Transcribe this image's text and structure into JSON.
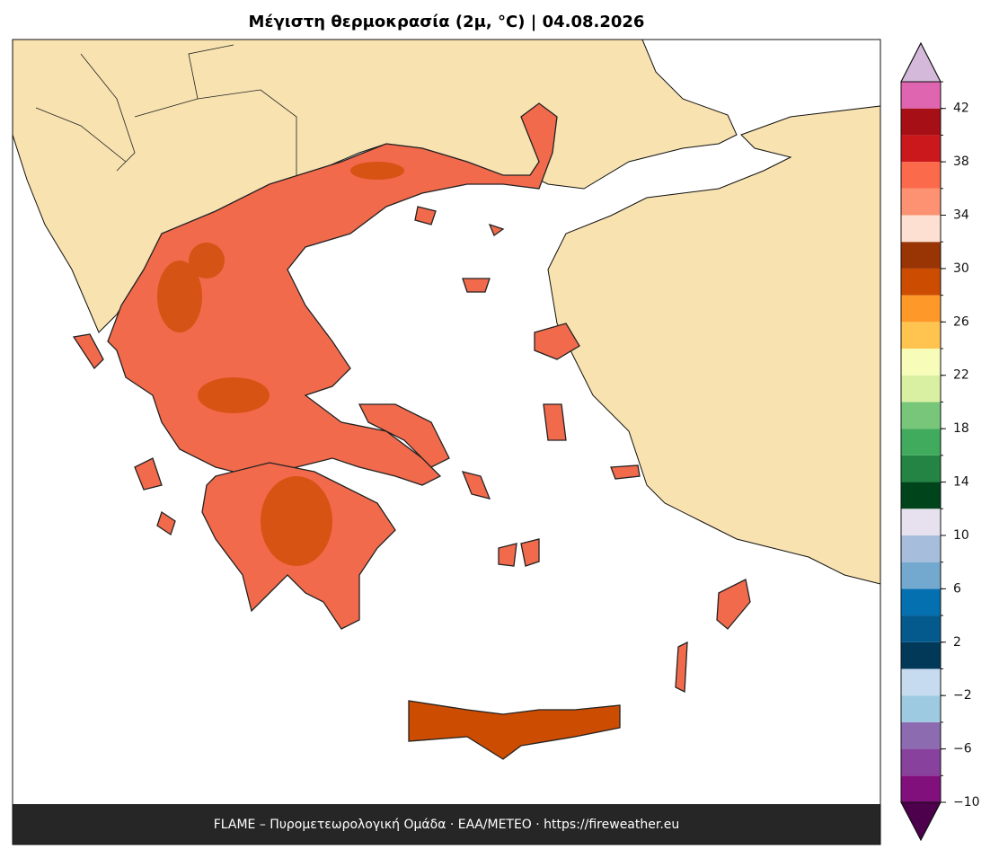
{
  "title": "Μέγιστη θερμοκρασία (2μ, °C)  |  04.08.2026",
  "footer": "FLAME – Πυρομετεωρολογική Ομάδα · ΕΑΑ/METEO · https://fireweather.eu",
  "colorbar": {
    "levels": [
      -10,
      -8,
      -6,
      -4,
      -2,
      0,
      2,
      4,
      6,
      8,
      10,
      12,
      14,
      16,
      18,
      20,
      22,
      24,
      26,
      28,
      30,
      32,
      34,
      36,
      38,
      40,
      42,
      44
    ],
    "colors": [
      "#810f7c",
      "#88419d",
      "#8c6bb1",
      "#9ecae1",
      "#c6dbef",
      "#023858",
      "#045a8d",
      "#0570b0",
      "#74a9cf",
      "#a6bddb",
      "#e7e1ef",
      "#00441b",
      "#238443",
      "#41ab5d",
      "#78c679",
      "#d9f0a3",
      "#f7fcb9",
      "#fec44f",
      "#fe9929",
      "#cc4c02",
      "#993404",
      "#fee0d2",
      "#fc9272",
      "#fb6a4a",
      "#cb181d",
      "#a50f15",
      "#df65b0"
    ],
    "extend_min_color": "#4d004b",
    "extend_max_color": "#d4b9da",
    "ticks": [
      {
        "value": -10,
        "label": "−10"
      },
      {
        "value": -6,
        "label": "−6"
      },
      {
        "value": -2,
        "label": "−2"
      },
      2,
      6,
      10,
      14,
      18,
      22,
      26,
      30,
      34,
      38,
      42
    ]
  }
}
